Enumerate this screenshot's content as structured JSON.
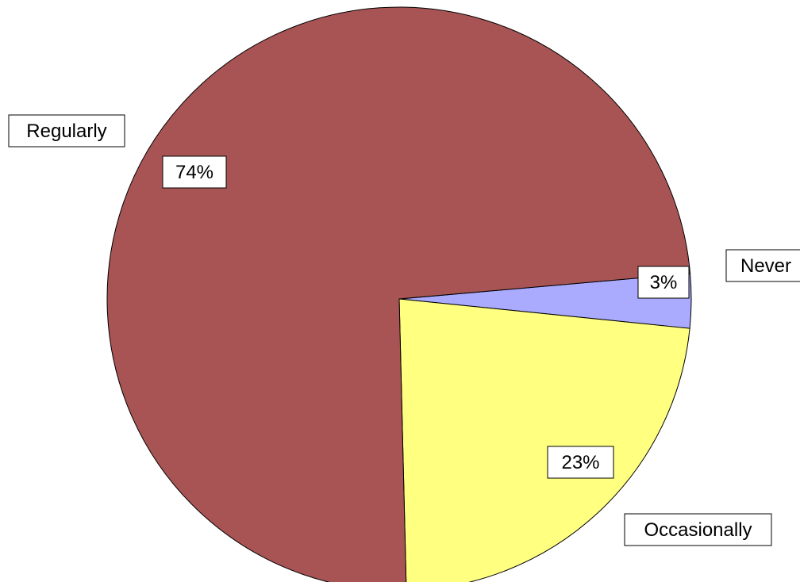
{
  "chart_data": {
    "type": "pie",
    "title": "",
    "slices": [
      {
        "category": "Never",
        "value": 3,
        "label": "3%",
        "color": "#AAAAFF"
      },
      {
        "category": "Occasionally",
        "value": 23,
        "label": "23%",
        "color": "#FFFF80"
      },
      {
        "category": "Regularly",
        "value": 74,
        "label": "74%",
        "color": "#A85454"
      }
    ],
    "start_angle_deg": -5,
    "direction": "clockwise"
  }
}
